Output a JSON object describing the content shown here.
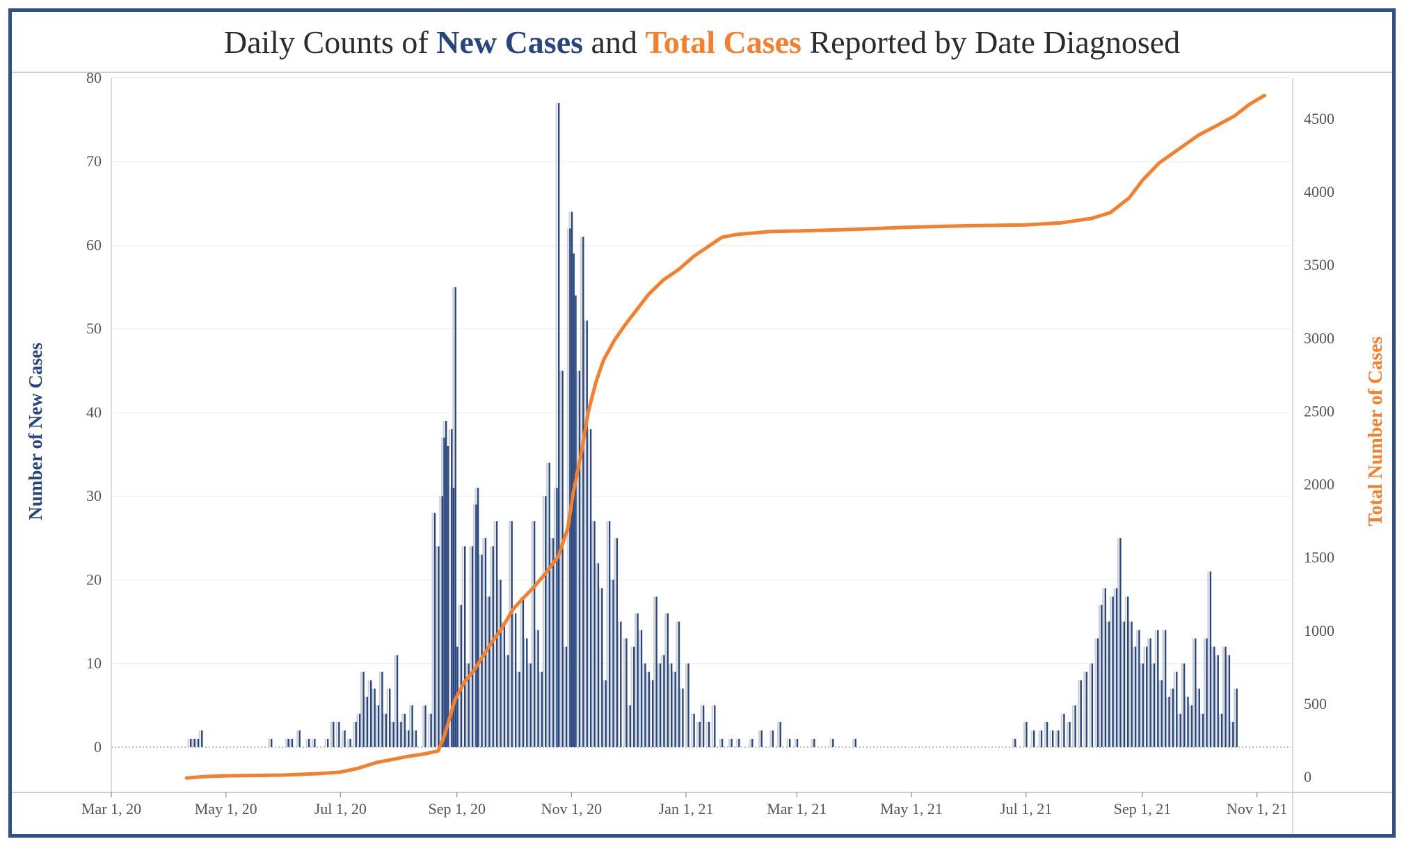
{
  "title": {
    "prefix": "Daily Counts of",
    "series1": "New Cases",
    "middle": "and",
    "series2": "Total Cases",
    "suffix": "Reported by Date Diagnosed"
  },
  "colors": {
    "new_cases": "#27467f",
    "total_cases": "#f47f2c",
    "ghost_bars": "#cfd2d8"
  },
  "chart_data": {
    "type": "bar",
    "title": "Daily Counts of New Cases and Total Cases Reported by Date Diagnosed",
    "ylabel": "Number of New Cases",
    "y2label": "Total Number of Cases",
    "ylim": [
      -5,
      80
    ],
    "y2lim": [
      -80,
      4780
    ],
    "xlim": [
      "2020-03-01",
      "2021-11-20"
    ],
    "x_ticks": [
      "Mar 1, 20",
      "May 1, 20",
      "Jul 1, 20",
      "Sep 1, 20",
      "Nov 1, 20",
      "Jan 1, 21",
      "Mar 1, 21",
      "May 1, 21",
      "Jul 1, 21",
      "Sep 1, 21",
      "Nov 1, 21"
    ],
    "x_tick_dates": [
      "2020-03-01",
      "2020-05-01",
      "2020-07-01",
      "2020-09-01",
      "2020-11-01",
      "2021-01-01",
      "2021-03-01",
      "2021-05-01",
      "2021-07-01",
      "2021-09-01",
      "2021-11-01"
    ],
    "y_ticks": [
      0,
      10,
      20,
      30,
      40,
      50,
      60,
      70,
      80
    ],
    "y2_ticks": [
      0,
      500,
      1000,
      1500,
      2000,
      2500,
      3000,
      3500,
      4000,
      4500
    ],
    "grid": true,
    "series": [
      {
        "name": "New Cases",
        "type": "bar",
        "axis": "left",
        "points": [
          [
            "2020-04-12",
            1
          ],
          [
            "2020-04-14",
            1
          ],
          [
            "2020-04-16",
            1
          ],
          [
            "2020-04-18",
            2
          ],
          [
            "2020-05-25",
            1
          ],
          [
            "2020-06-03",
            1
          ],
          [
            "2020-06-05",
            1
          ],
          [
            "2020-06-09",
            2
          ],
          [
            "2020-06-14",
            1
          ],
          [
            "2020-06-17",
            1
          ],
          [
            "2020-06-24",
            1
          ],
          [
            "2020-06-27",
            3
          ],
          [
            "2020-06-30",
            3
          ],
          [
            "2020-07-03",
            2
          ],
          [
            "2020-07-06",
            1
          ],
          [
            "2020-07-09",
            3
          ],
          [
            "2020-07-11",
            4
          ],
          [
            "2020-07-13",
            9
          ],
          [
            "2020-07-15",
            6
          ],
          [
            "2020-07-17",
            8
          ],
          [
            "2020-07-19",
            7
          ],
          [
            "2020-07-21",
            5
          ],
          [
            "2020-07-23",
            9
          ],
          [
            "2020-07-25",
            4
          ],
          [
            "2020-07-27",
            7
          ],
          [
            "2020-07-29",
            3
          ],
          [
            "2020-07-31",
            11
          ],
          [
            "2020-08-02",
            3
          ],
          [
            "2020-08-04",
            4
          ],
          [
            "2020-08-06",
            2
          ],
          [
            "2020-08-08",
            5
          ],
          [
            "2020-08-10",
            2
          ],
          [
            "2020-08-15",
            5
          ],
          [
            "2020-08-18",
            4
          ],
          [
            "2020-08-20",
            28
          ],
          [
            "2020-08-22",
            24
          ],
          [
            "2020-08-24",
            30
          ],
          [
            "2020-08-25",
            37
          ],
          [
            "2020-08-26",
            39
          ],
          [
            "2020-08-27",
            36
          ],
          [
            "2020-08-29",
            38
          ],
          [
            "2020-08-30",
            31
          ],
          [
            "2020-08-31",
            55
          ],
          [
            "2020-09-01",
            12
          ],
          [
            "2020-09-03",
            17
          ],
          [
            "2020-09-05",
            24
          ],
          [
            "2020-09-07",
            10
          ],
          [
            "2020-09-09",
            24
          ],
          [
            "2020-09-11",
            29
          ],
          [
            "2020-09-12",
            31
          ],
          [
            "2020-09-14",
            23
          ],
          [
            "2020-09-16",
            25
          ],
          [
            "2020-09-18",
            18
          ],
          [
            "2020-09-20",
            24
          ],
          [
            "2020-09-22",
            27
          ],
          [
            "2020-09-24",
            20
          ],
          [
            "2020-09-26",
            15
          ],
          [
            "2020-09-28",
            11
          ],
          [
            "2020-09-30",
            27
          ],
          [
            "2020-10-02",
            16
          ],
          [
            "2020-10-04",
            9
          ],
          [
            "2020-10-06",
            18
          ],
          [
            "2020-10-08",
            13
          ],
          [
            "2020-10-10",
            10
          ],
          [
            "2020-10-12",
            27
          ],
          [
            "2020-10-14",
            14
          ],
          [
            "2020-10-16",
            9
          ],
          [
            "2020-10-18",
            30
          ],
          [
            "2020-10-20",
            34
          ],
          [
            "2020-10-22",
            25
          ],
          [
            "2020-10-24",
            31
          ],
          [
            "2020-10-25",
            77
          ],
          [
            "2020-10-27",
            45
          ],
          [
            "2020-10-29",
            12
          ],
          [
            "2020-10-31",
            62
          ],
          [
            "2020-11-01",
            64
          ],
          [
            "2020-11-02",
            59
          ],
          [
            "2020-11-03",
            54
          ],
          [
            "2020-11-05",
            45
          ],
          [
            "2020-11-07",
            61
          ],
          [
            "2020-11-09",
            51
          ],
          [
            "2020-11-11",
            38
          ],
          [
            "2020-11-13",
            27
          ],
          [
            "2020-11-15",
            22
          ],
          [
            "2020-11-17",
            19
          ],
          [
            "2020-11-19",
            8
          ],
          [
            "2020-11-21",
            27
          ],
          [
            "2020-11-23",
            20
          ],
          [
            "2020-11-25",
            25
          ],
          [
            "2020-11-27",
            15
          ],
          [
            "2020-11-30",
            13
          ],
          [
            "2020-12-02",
            5
          ],
          [
            "2020-12-04",
            12
          ],
          [
            "2020-12-06",
            16
          ],
          [
            "2020-12-08",
            14
          ],
          [
            "2020-12-10",
            10
          ],
          [
            "2020-12-12",
            9
          ],
          [
            "2020-12-14",
            8
          ],
          [
            "2020-12-16",
            18
          ],
          [
            "2020-12-18",
            10
          ],
          [
            "2020-12-20",
            11
          ],
          [
            "2020-12-22",
            16
          ],
          [
            "2020-12-24",
            10
          ],
          [
            "2020-12-26",
            9
          ],
          [
            "2020-12-28",
            15
          ],
          [
            "2020-12-30",
            7
          ],
          [
            "2021-01-02",
            10
          ],
          [
            "2021-01-05",
            4
          ],
          [
            "2021-01-08",
            3
          ],
          [
            "2021-01-10",
            5
          ],
          [
            "2021-01-13",
            3
          ],
          [
            "2021-01-16",
            5
          ],
          [
            "2021-01-20",
            1
          ],
          [
            "2021-01-25",
            1
          ],
          [
            "2021-01-29",
            1
          ],
          [
            "2021-02-05",
            1
          ],
          [
            "2021-02-10",
            2
          ],
          [
            "2021-02-16",
            2
          ],
          [
            "2021-02-20",
            3
          ],
          [
            "2021-02-25",
            1
          ],
          [
            "2021-03-01",
            1
          ],
          [
            "2021-03-10",
            1
          ],
          [
            "2021-03-20",
            1
          ],
          [
            "2021-04-01",
            1
          ],
          [
            "2021-06-25",
            1
          ],
          [
            "2021-07-01",
            3
          ],
          [
            "2021-07-05",
            2
          ],
          [
            "2021-07-09",
            2
          ],
          [
            "2021-07-12",
            3
          ],
          [
            "2021-07-15",
            2
          ],
          [
            "2021-07-18",
            2
          ],
          [
            "2021-07-21",
            4
          ],
          [
            "2021-07-24",
            3
          ],
          [
            "2021-07-27",
            5
          ],
          [
            "2021-07-30",
            8
          ],
          [
            "2021-08-02",
            9
          ],
          [
            "2021-08-05",
            10
          ],
          [
            "2021-08-08",
            13
          ],
          [
            "2021-08-10",
            17
          ],
          [
            "2021-08-12",
            19
          ],
          [
            "2021-08-14",
            15
          ],
          [
            "2021-08-16",
            18
          ],
          [
            "2021-08-18",
            19
          ],
          [
            "2021-08-20",
            25
          ],
          [
            "2021-08-22",
            15
          ],
          [
            "2021-08-24",
            18
          ],
          [
            "2021-08-26",
            15
          ],
          [
            "2021-08-28",
            12
          ],
          [
            "2021-08-30",
            14
          ],
          [
            "2021-09-01",
            10
          ],
          [
            "2021-09-03",
            12
          ],
          [
            "2021-09-05",
            13
          ],
          [
            "2021-09-07",
            10
          ],
          [
            "2021-09-09",
            14
          ],
          [
            "2021-09-11",
            8
          ],
          [
            "2021-09-13",
            14
          ],
          [
            "2021-09-15",
            6
          ],
          [
            "2021-09-17",
            7
          ],
          [
            "2021-09-19",
            9
          ],
          [
            "2021-09-21",
            4
          ],
          [
            "2021-09-23",
            10
          ],
          [
            "2021-09-25",
            6
          ],
          [
            "2021-09-27",
            5
          ],
          [
            "2021-09-29",
            13
          ],
          [
            "2021-10-01",
            7
          ],
          [
            "2021-10-03",
            4
          ],
          [
            "2021-10-05",
            13
          ],
          [
            "2021-10-07",
            21
          ],
          [
            "2021-10-09",
            12
          ],
          [
            "2021-10-11",
            11
          ],
          [
            "2021-10-13",
            4
          ],
          [
            "2021-10-15",
            12
          ],
          [
            "2021-10-17",
            11
          ],
          [
            "2021-10-19",
            3
          ],
          [
            "2021-10-21",
            7
          ]
        ]
      },
      {
        "name": "Total Cases",
        "type": "line",
        "axis": "right",
        "points": [
          [
            "2020-04-10",
            -5
          ],
          [
            "2020-04-20",
            5
          ],
          [
            "2020-05-01",
            10
          ],
          [
            "2020-06-01",
            15
          ],
          [
            "2020-06-20",
            25
          ],
          [
            "2020-07-01",
            35
          ],
          [
            "2020-07-10",
            60
          ],
          [
            "2020-07-20",
            100
          ],
          [
            "2020-07-28",
            120
          ],
          [
            "2020-08-05",
            140
          ],
          [
            "2020-08-15",
            160
          ],
          [
            "2020-08-22",
            180
          ],
          [
            "2020-08-25",
            270
          ],
          [
            "2020-08-31",
            530
          ],
          [
            "2020-09-05",
            650
          ],
          [
            "2020-09-10",
            730
          ],
          [
            "2020-09-15",
            830
          ],
          [
            "2020-09-20",
            930
          ],
          [
            "2020-09-25",
            1020
          ],
          [
            "2020-10-01",
            1150
          ],
          [
            "2020-10-06",
            1220
          ],
          [
            "2020-10-12",
            1300
          ],
          [
            "2020-10-18",
            1390
          ],
          [
            "2020-10-25",
            1510
          ],
          [
            "2020-10-30",
            1700
          ],
          [
            "2020-11-02",
            1950
          ],
          [
            "2020-11-06",
            2200
          ],
          [
            "2020-11-10",
            2500
          ],
          [
            "2020-11-14",
            2700
          ],
          [
            "2020-11-18",
            2850
          ],
          [
            "2020-11-24",
            2990
          ],
          [
            "2020-11-30",
            3100
          ],
          [
            "2020-12-06",
            3200
          ],
          [
            "2020-12-12",
            3300
          ],
          [
            "2020-12-20",
            3400
          ],
          [
            "2020-12-28",
            3470
          ],
          [
            "2021-01-05",
            3560
          ],
          [
            "2021-01-12",
            3620
          ],
          [
            "2021-01-20",
            3690
          ],
          [
            "2021-01-28",
            3710
          ],
          [
            "2021-02-15",
            3730
          ],
          [
            "2021-03-05",
            3735
          ],
          [
            "2021-04-01",
            3745
          ],
          [
            "2021-05-01",
            3760
          ],
          [
            "2021-06-01",
            3770
          ],
          [
            "2021-07-01",
            3775
          ],
          [
            "2021-07-20",
            3790
          ],
          [
            "2021-08-05",
            3820
          ],
          [
            "2021-08-15",
            3860
          ],
          [
            "2021-08-25",
            3960
          ],
          [
            "2021-09-01",
            4080
          ],
          [
            "2021-09-10",
            4200
          ],
          [
            "2021-09-20",
            4290
          ],
          [
            "2021-10-01",
            4390
          ],
          [
            "2021-10-10",
            4450
          ],
          [
            "2021-10-20",
            4520
          ],
          [
            "2021-10-28",
            4600
          ],
          [
            "2021-11-05",
            4660
          ]
        ]
      }
    ]
  }
}
